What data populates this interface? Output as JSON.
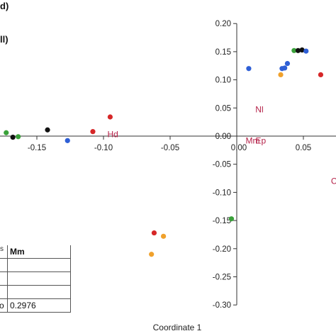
{
  "chart_data": {
    "type": "scatter",
    "title": "",
    "xlabel": "Coordinate 1",
    "ylabel": "",
    "xlim": [
      -0.195,
      0.075
    ],
    "ylim": [
      -0.31,
      0.205
    ],
    "x_ticks": [
      "-0.15",
      "-0.10",
      "-0.05",
      "0.05"
    ],
    "x_tick_values": [
      -0.15,
      -0.1,
      -0.05,
      0.05
    ],
    "y_ticks": [
      "0.20",
      "0.15",
      "0.10",
      "0.05",
      "0.00",
      "-0.05",
      "-0.10",
      "-0.15",
      "-0.20",
      "-0.25",
      "-0.30"
    ],
    "y_tick_values": [
      0.2,
      0.15,
      0.1,
      0.05,
      0.0,
      -0.05,
      -0.1,
      -0.15,
      -0.2,
      -0.25,
      -0.3
    ],
    "origin_label": "0.00",
    "points": [
      {
        "x": -0.173,
        "y": 0.006,
        "color": "#3aa13a"
      },
      {
        "x": -0.168,
        "y": -0.002,
        "color": "#111111"
      },
      {
        "x": -0.164,
        "y": -0.001,
        "color": "#3aa13a"
      },
      {
        "x": -0.142,
        "y": 0.011,
        "color": "#111111"
      },
      {
        "x": -0.127,
        "y": -0.008,
        "color": "#2e5fd6"
      },
      {
        "x": -0.108,
        "y": 0.008,
        "color": "#d62728"
      },
      {
        "x": -0.095,
        "y": 0.034,
        "color": "#d62728"
      },
      {
        "x": -0.062,
        "y": -0.172,
        "color": "#d62728"
      },
      {
        "x": -0.055,
        "y": -0.178,
        "color": "#f0a12c"
      },
      {
        "x": -0.064,
        "y": -0.21,
        "color": "#f0a12c"
      },
      {
        "x": -0.004,
        "y": -0.147,
        "color": "#3aa13a"
      },
      {
        "x": 0.009,
        "y": 0.12,
        "color": "#2e5fd6"
      },
      {
        "x": 0.034,
        "y": 0.12,
        "color": "#2e5fd6"
      },
      {
        "x": 0.036,
        "y": 0.121,
        "color": "#2e5fd6"
      },
      {
        "x": 0.038,
        "y": 0.129,
        "color": "#2e5fd6"
      },
      {
        "x": 0.033,
        "y": 0.109,
        "color": "#f0a12c"
      },
      {
        "x": 0.043,
        "y": 0.152,
        "color": "#3aa13a"
      },
      {
        "x": 0.046,
        "y": 0.152,
        "color": "#111111"
      },
      {
        "x": 0.049,
        "y": 0.153,
        "color": "#111111"
      },
      {
        "x": 0.052,
        "y": 0.151,
        "color": "#2e5fd6"
      },
      {
        "x": 0.063,
        "y": 0.109,
        "color": "#d62728"
      }
    ],
    "labels": [
      {
        "text": "Hd",
        "x": -0.093,
        "y": -0.002
      },
      {
        "text": "Nl",
        "x": 0.017,
        "y": 0.042
      },
      {
        "text": "Mm",
        "x": 0.012,
        "y": -0.013
      },
      {
        "text": "Ep",
        "x": 0.018,
        "y": -0.013
      },
      {
        "text": "C",
        "x": 0.073,
        "y": -0.085
      }
    ]
  },
  "legend_fragments": [
    "d)",
    "ll)"
  ],
  "table": {
    "caption": "s",
    "header": [
      "",
      "Mm"
    ],
    "rows": [
      [
        "",
        ""
      ],
      [
        "",
        ""
      ],
      [
        "",
        ""
      ],
      [
        "o",
        "0.2976"
      ]
    ]
  }
}
